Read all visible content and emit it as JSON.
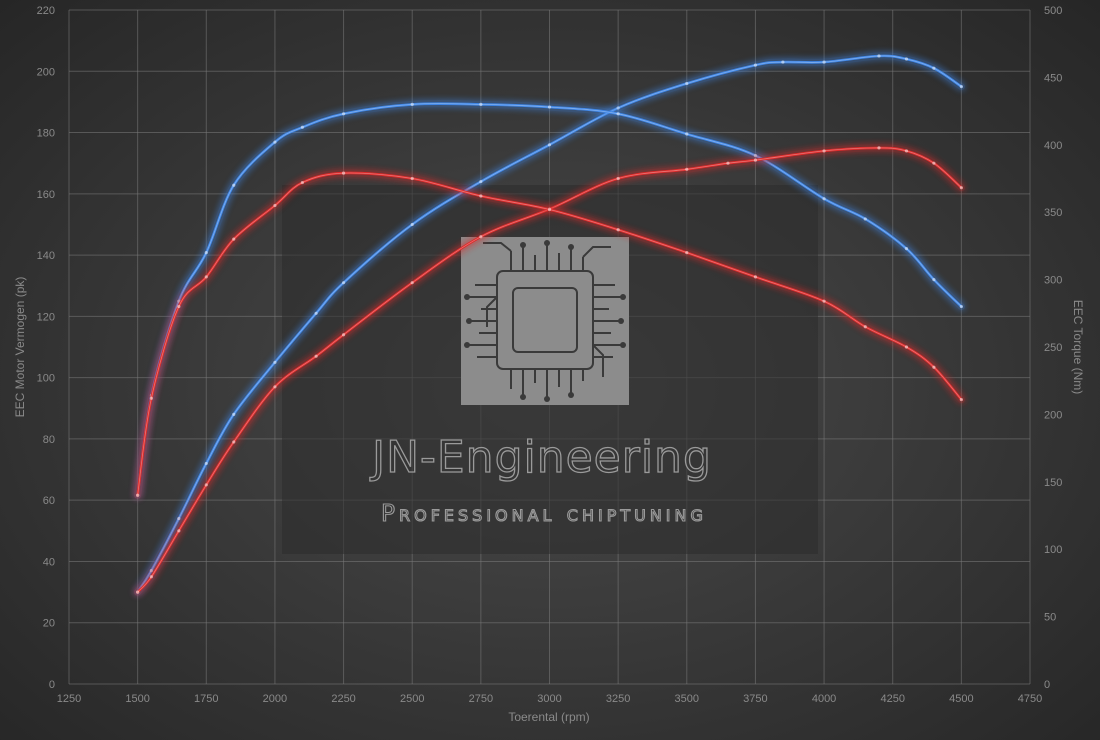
{
  "chart_data": {
    "type": "line",
    "xlabel": "Toerental (rpm)",
    "ylabel_left": "EEC Motor Vermogen (pk)",
    "ylabel_right": "EEC Torque (Nm)",
    "xlim": [
      1250,
      4750
    ],
    "ylim_left": [
      0,
      220
    ],
    "ylim_right": [
      0,
      500
    ],
    "x_ticks": [
      1250,
      1500,
      1750,
      2000,
      2250,
      2500,
      2750,
      3000,
      3250,
      3500,
      3750,
      4000,
      4250,
      4500,
      4750
    ],
    "y_left_ticks": [
      0,
      20,
      40,
      60,
      80,
      100,
      120,
      140,
      160,
      180,
      200,
      220
    ],
    "y_right_ticks": [
      0,
      50,
      100,
      150,
      200,
      250,
      300,
      350,
      400,
      450,
      500
    ],
    "grid": true,
    "series": [
      {
        "axis": "left",
        "color": "#3f86e6",
        "x": [
          1500,
          1550,
          1650,
          1750,
          1850,
          2000,
          2150,
          2250,
          2500,
          2750,
          3000,
          3250,
          3500,
          3750,
          3850,
          4000,
          4200,
          4300,
          4400,
          4500
        ],
        "y": [
          30,
          37,
          54,
          72,
          88,
          105,
          121,
          131,
          150,
          164,
          176,
          188,
          196,
          202,
          203,
          203,
          205,
          204,
          201,
          195
        ]
      },
      {
        "axis": "right",
        "color": "#3f86e6",
        "x": [
          1500,
          1550,
          1650,
          1750,
          1850,
          2000,
          2100,
          2250,
          2500,
          2750,
          3000,
          3250,
          3500,
          3750,
          4000,
          4150,
          4300,
          4400,
          4500
        ],
        "y": [
          140,
          214,
          284,
          320,
          370,
          402,
          413,
          423,
          430,
          430,
          428,
          423,
          408,
          392,
          360,
          345,
          323,
          300,
          280
        ]
      },
      {
        "axis": "left",
        "color": "#dd2b2b",
        "x": [
          1500,
          1550,
          1650,
          1750,
          1850,
          2000,
          2150,
          2250,
          2500,
          2750,
          3000,
          3250,
          3500,
          3650,
          3750,
          4000,
          4200,
          4300,
          4400,
          4500
        ],
        "y": [
          30,
          35,
          50,
          65,
          79,
          97,
          107,
          114,
          131,
          146,
          155,
          165,
          168,
          170,
          171,
          174,
          175,
          174,
          170,
          162
        ]
      },
      {
        "axis": "right",
        "color": "#dd2b2b",
        "x": [
          1500,
          1550,
          1650,
          1750,
          1850,
          2000,
          2100,
          2250,
          2500,
          2750,
          3000,
          3250,
          3500,
          3750,
          4000,
          4150,
          4300,
          4400,
          4500
        ],
        "y": [
          140,
          212,
          280,
          302,
          330,
          355,
          372,
          379,
          375,
          362,
          352,
          337,
          320,
          302,
          284,
          265,
          250,
          235,
          211
        ]
      }
    ]
  },
  "watermark": {
    "title": "JN-Engineering",
    "subtitle": "Professional chiptuning",
    "icon": "circuit-chip-icon"
  }
}
